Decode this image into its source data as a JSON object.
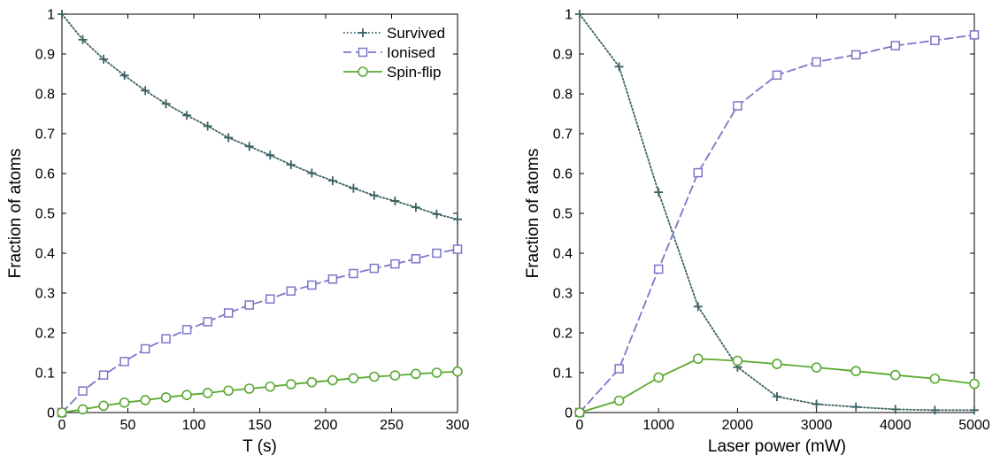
{
  "chart_data": [
    {
      "type": "line",
      "title": "",
      "xlabel": "T (s)",
      "ylabel": "Fraction of atoms",
      "xlim": [
        0,
        300
      ],
      "ylim": [
        0,
        1
      ],
      "xticks": [
        0,
        50,
        100,
        150,
        200,
        250,
        300
      ],
      "yticks": [
        0,
        0.1,
        0.2,
        0.3,
        0.4,
        0.5,
        0.6,
        0.7,
        0.8,
        0.9,
        1
      ],
      "grid": false,
      "legend": "top-right",
      "series": [
        {
          "name": "Survived",
          "color": "#3a6160",
          "linestyle": "dotted",
          "marker": "plus",
          "x": [
            0,
            15.8,
            31.6,
            47.4,
            63.2,
            78.9,
            94.7,
            110.5,
            126.3,
            142.1,
            157.9,
            173.7,
            189.5,
            205.3,
            221.1,
            236.8,
            252.6,
            268.4,
            284.2,
            300
          ],
          "y": [
            1.0,
            0.936,
            0.887,
            0.846,
            0.808,
            0.775,
            0.746,
            0.719,
            0.69,
            0.668,
            0.646,
            0.622,
            0.601,
            0.582,
            0.563,
            0.545,
            0.531,
            0.515,
            0.498,
            0.485
          ]
        },
        {
          "name": "Ionised",
          "color": "#7b77c9",
          "linestyle": "dashed",
          "marker": "square",
          "x": [
            0,
            15.8,
            31.6,
            47.4,
            63.2,
            78.9,
            94.7,
            110.5,
            126.3,
            142.1,
            157.9,
            173.7,
            189.5,
            205.3,
            221.1,
            236.8,
            252.6,
            268.4,
            284.2,
            300
          ],
          "y": [
            0.0,
            0.054,
            0.094,
            0.128,
            0.16,
            0.185,
            0.208,
            0.228,
            0.25,
            0.27,
            0.285,
            0.305,
            0.32,
            0.335,
            0.349,
            0.362,
            0.373,
            0.386,
            0.4,
            0.41
          ]
        },
        {
          "name": "Spin-flip",
          "color": "#5aa832",
          "linestyle": "solid",
          "marker": "circle",
          "x": [
            0,
            15.8,
            31.6,
            47.4,
            63.2,
            78.9,
            94.7,
            110.5,
            126.3,
            142.1,
            157.9,
            173.7,
            189.5,
            205.3,
            221.1,
            236.8,
            252.6,
            268.4,
            284.2,
            300
          ],
          "y": [
            0.0,
            0.008,
            0.017,
            0.025,
            0.031,
            0.038,
            0.044,
            0.049,
            0.055,
            0.06,
            0.065,
            0.071,
            0.076,
            0.081,
            0.086,
            0.09,
            0.093,
            0.097,
            0.1,
            0.103
          ]
        }
      ]
    },
    {
      "type": "line",
      "title": "",
      "xlabel": "Laser power (mW)",
      "ylabel": "Fraction of atoms",
      "xlim": [
        0,
        5000
      ],
      "ylim": [
        0,
        1
      ],
      "xticks": [
        0,
        1000,
        2000,
        3000,
        4000,
        5000
      ],
      "yticks": [
        0,
        0.1,
        0.2,
        0.3,
        0.4,
        0.5,
        0.6,
        0.7,
        0.8,
        0.9,
        1
      ],
      "grid": false,
      "series": [
        {
          "name": "Survived",
          "color": "#3a6160",
          "linestyle": "dotted",
          "marker": "plus",
          "x": [
            0,
            500,
            1000,
            1500,
            2000,
            2500,
            3000,
            3500,
            4000,
            4500,
            5000
          ],
          "y": [
            1.0,
            0.868,
            0.553,
            0.266,
            0.114,
            0.04,
            0.021,
            0.014,
            0.008,
            0.006,
            0.006
          ]
        },
        {
          "name": "Ionised",
          "color": "#7b77c9",
          "linestyle": "dashed",
          "marker": "square",
          "x": [
            0,
            500,
            1000,
            1500,
            2000,
            2500,
            3000,
            3500,
            4000,
            4500,
            5000
          ],
          "y": [
            0.0,
            0.11,
            0.36,
            0.602,
            0.77,
            0.847,
            0.88,
            0.898,
            0.921,
            0.934,
            0.948
          ]
        },
        {
          "name": "Spin-flip",
          "color": "#5aa832",
          "linestyle": "solid",
          "marker": "circle",
          "x": [
            0,
            500,
            1000,
            1500,
            2000,
            2500,
            3000,
            3500,
            4000,
            4500,
            5000
          ],
          "y": [
            0.0,
            0.03,
            0.088,
            0.135,
            0.13,
            0.122,
            0.113,
            0.104,
            0.094,
            0.085,
            0.072
          ]
        }
      ]
    }
  ]
}
